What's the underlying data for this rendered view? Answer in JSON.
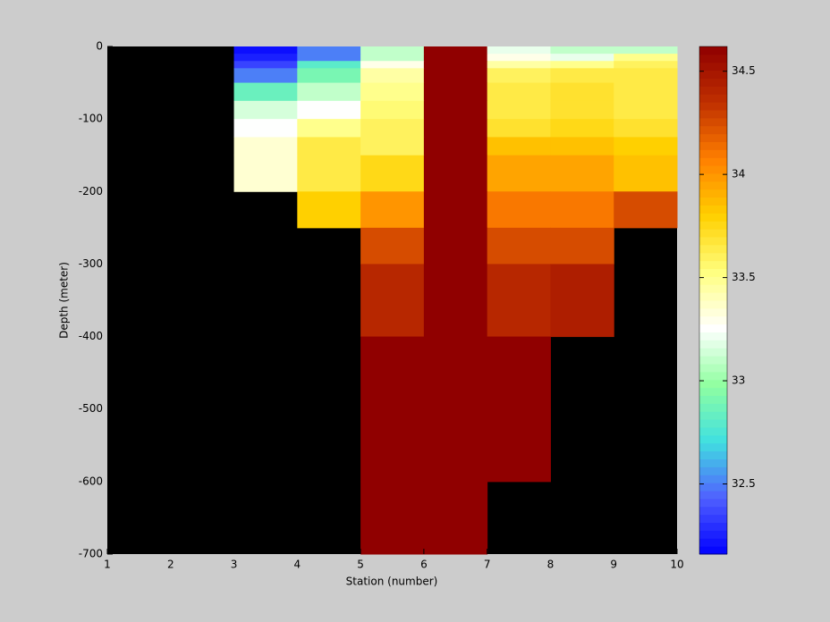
{
  "chart_data": {
    "type": "heatmap",
    "xlabel": "Station (number)",
    "ylabel": "Depth (meter)",
    "x": [
      1,
      2,
      3,
      4,
      5,
      6,
      7,
      8,
      9,
      10
    ],
    "y": [
      0,
      -10,
      -20,
      -30,
      -50,
      -75,
      -100,
      -125,
      -150,
      -200,
      -250,
      -300,
      -400,
      -500,
      -600,
      -700
    ],
    "values": [
      [
        null,
        null,
        32.2,
        32.5,
        33.1,
        34.62,
        33.2,
        33.1,
        33.1
      ],
      [
        null,
        null,
        32.25,
        32.5,
        33.1,
        34.62,
        33.3,
        33.2,
        33.5
      ],
      [
        null,
        null,
        32.35,
        32.8,
        33.3,
        34.62,
        33.45,
        33.5,
        33.6
      ],
      [
        null,
        null,
        32.5,
        32.9,
        33.45,
        34.62,
        33.6,
        33.65,
        33.65
      ],
      [
        null,
        null,
        32.85,
        33.1,
        33.5,
        34.62,
        33.65,
        33.7,
        33.65
      ],
      [
        null,
        null,
        33.15,
        33.25,
        33.55,
        34.62,
        33.65,
        33.7,
        33.65
      ],
      [
        null,
        null,
        33.25,
        33.5,
        33.6,
        34.62,
        33.7,
        33.75,
        33.7
      ],
      [
        null,
        null,
        33.35,
        33.65,
        33.6,
        34.62,
        33.85,
        33.85,
        33.8
      ],
      [
        null,
        null,
        33.35,
        33.65,
        33.75,
        34.62,
        33.95,
        33.95,
        33.85
      ],
      [
        null,
        null,
        null,
        33.8,
        34.0,
        34.62,
        34.1,
        34.1,
        34.25
      ],
      [
        null,
        null,
        null,
        null,
        34.25,
        34.62,
        34.25,
        34.25,
        null
      ],
      [
        null,
        null,
        null,
        null,
        34.4,
        34.62,
        34.4,
        34.45,
        null
      ],
      [
        null,
        null,
        null,
        null,
        34.62,
        34.62,
        34.62,
        null,
        null
      ],
      [
        null,
        null,
        null,
        null,
        34.62,
        34.62,
        34.62,
        null,
        null
      ],
      [
        null,
        null,
        null,
        null,
        34.62,
        34.62,
        null,
        null,
        null
      ]
    ],
    "xlim": [
      1,
      10
    ],
    "ylim": [
      -700,
      0
    ],
    "xticks": [
      1,
      2,
      3,
      4,
      5,
      6,
      7,
      8,
      9,
      10
    ],
    "yticks": [
      0,
      -100,
      -200,
      -300,
      -400,
      -500,
      -600,
      -700
    ],
    "clim": [
      32.16,
      34.62
    ],
    "cticks": [
      32.5,
      33,
      33.5,
      34,
      34.5
    ],
    "colormap": [
      "#0000ff",
      "#5060ff",
      "#40e0e0",
      "#90ffa0",
      "#ffffff",
      "#ffff80",
      "#ffd000",
      "#ff8000",
      "#c03000",
      "#900000"
    ],
    "background": "#000000"
  }
}
